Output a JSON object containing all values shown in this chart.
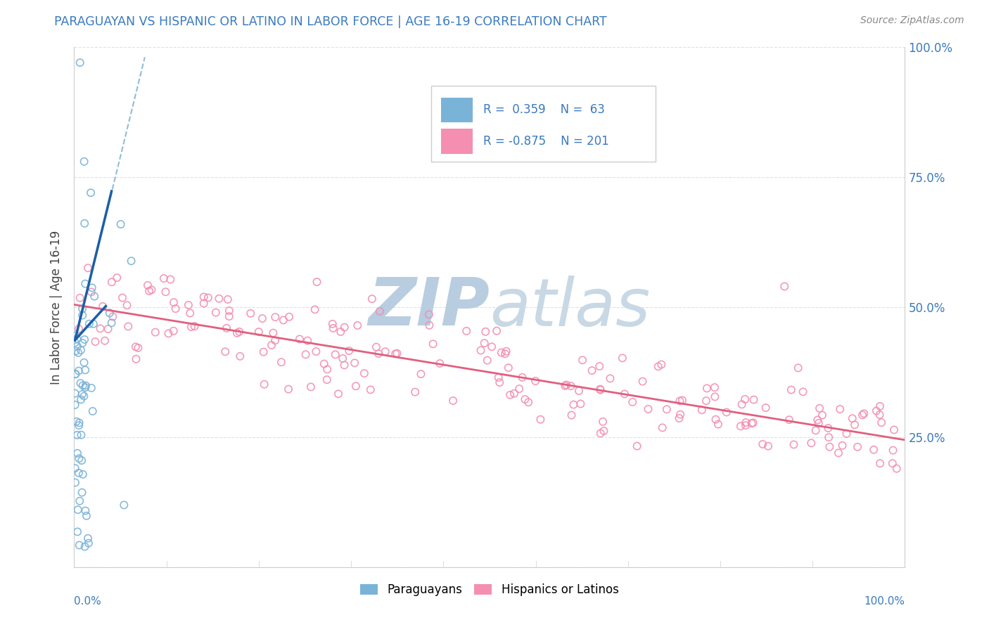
{
  "title": "PARAGUAYAN VS HISPANIC OR LATINO IN LABOR FORCE | AGE 16-19 CORRELATION CHART",
  "source": "Source: ZipAtlas.com",
  "ylabel": "In Labor Force | Age 16-19",
  "blue_scatter_color": "#7ab3d8",
  "pink_scatter_color": "#f48fb1",
  "blue_line_color": "#1a5fa8",
  "blue_dash_color": "#90bcd8",
  "pink_line_color": "#e0607e",
  "title_color": "#3a7abf",
  "source_color": "#888888",
  "watermark_zip_color": "#b8cde0",
  "watermark_atlas_color": "#c8d8e4",
  "legend_text_color": "#3a7abf",
  "background_color": "#ffffff",
  "grid_color": "#e0e0e0",
  "axis_color": "#cccccc",
  "ylabel_color": "#444444"
}
